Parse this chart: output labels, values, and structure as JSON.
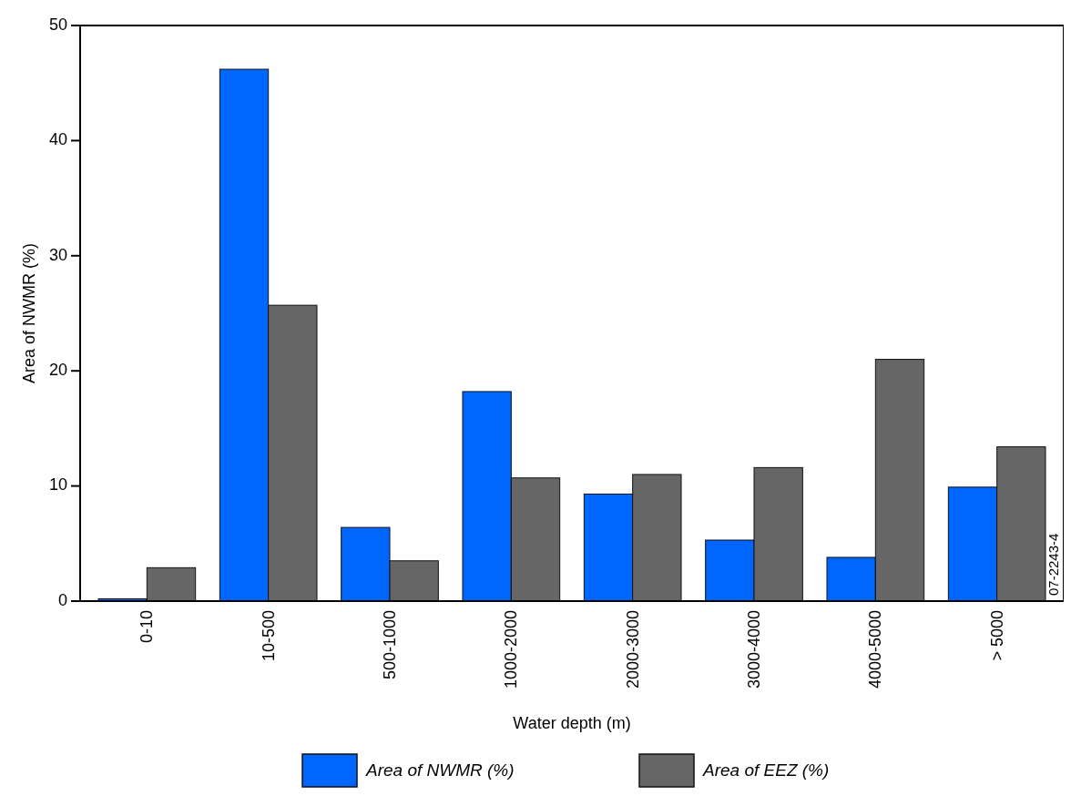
{
  "chart_data": {
    "type": "bar",
    "xlabel": "Water depth (m)",
    "ylabel": "Area of NWMR (%)",
    "categories": [
      "0-10",
      "10-500",
      "500-1000",
      "1000-2000",
      "2000-3000",
      "3000-4000",
      "4000-5000",
      "> 5000"
    ],
    "series": [
      {
        "name": "Area of NWMR (%)",
        "color": "#0066ff",
        "values": [
          0.2,
          46.2,
          6.4,
          18.2,
          9.3,
          5.3,
          3.8,
          9.9
        ]
      },
      {
        "name": "Area of EEZ (%)",
        "color": "#666666",
        "values": [
          2.9,
          25.7,
          3.5,
          10.7,
          11,
          11.6,
          21,
          13.4
        ]
      }
    ],
    "ylim": [
      0,
      50
    ],
    "yticks": [
      0,
      10,
      20,
      30,
      40,
      50
    ],
    "grid": false,
    "legend": "bottom",
    "annotations": [
      "07-2243-4"
    ]
  }
}
